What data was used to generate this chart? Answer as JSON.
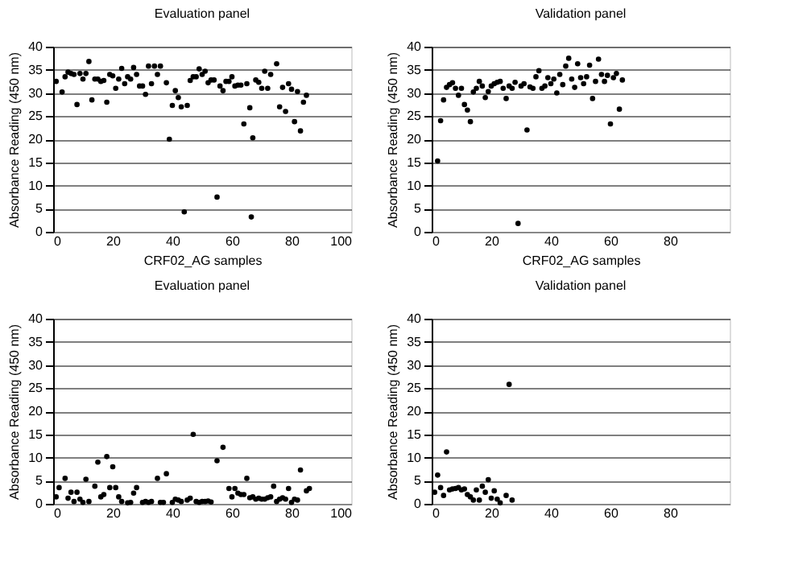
{
  "chart_data": [
    {
      "type": "scatter",
      "title": "Evaluation panel",
      "xlabel": "CRF02_AG samples",
      "ylabel": "Absorbance Reading (450 nm)",
      "color": "#000000",
      "marker": "circle",
      "grid": "y",
      "xlim": [
        0,
        100
      ],
      "xticks": [
        0,
        20,
        40,
        60,
        80,
        100
      ],
      "ylim": [
        0,
        40
      ],
      "yticks": [
        0,
        5,
        10,
        15,
        20,
        25,
        30,
        35,
        40
      ],
      "x": [
        1,
        3,
        4,
        5,
        6,
        7,
        8,
        9,
        10,
        11,
        12,
        13,
        14,
        15,
        16,
        17,
        18,
        19,
        20,
        21,
        22,
        23,
        24,
        25,
        26,
        27,
        28,
        29,
        30,
        31,
        32,
        33,
        34,
        35,
        36,
        38,
        39,
        40,
        41,
        42,
        43,
        44,
        45,
        46,
        47,
        48,
        49,
        50,
        51,
        52,
        53,
        54,
        55,
        56,
        57,
        58,
        59,
        60,
        61,
        62,
        63,
        64,
        65,
        66,
        66.5,
        67,
        68,
        69,
        70,
        71,
        72,
        73,
        75,
        76,
        77,
        78,
        79,
        80,
        81,
        82,
        83,
        84,
        85
      ],
      "values": [
        32.5,
        30.2,
        33.5,
        34.5,
        34.2,
        34,
        27.5,
        34.2,
        33,
        34.2,
        36.8,
        28.5,
        33,
        33,
        32.5,
        32.7,
        28,
        34,
        33.7,
        31,
        33,
        35.3,
        32,
        33.5,
        33,
        35.5,
        34,
        31.5,
        31.5,
        29.7,
        35.8,
        32,
        35.8,
        34,
        35.8,
        32.2,
        20,
        27.3,
        30.5,
        29,
        27,
        4.3,
        27.3,
        32.7,
        33.5,
        33.5,
        35.2,
        34,
        34.7,
        32.2,
        32.8,
        32.8,
        7.5,
        31.5,
        30.5,
        32.5,
        32.5,
        33.5,
        31.5,
        31.7,
        31.7,
        23.3,
        32,
        26.8,
        3.2,
        20.3,
        32.8,
        32.3,
        31,
        34.7,
        31,
        34,
        36.3,
        27,
        31.2,
        26,
        32,
        30.8,
        23.8,
        30.3,
        21.8,
        28,
        29.5
      ]
    },
    {
      "type": "scatter",
      "title": "Validation panel",
      "xlabel": "CRF02_AG samples",
      "ylabel": "Absorbance Reading (450 nm)",
      "color": "#000000",
      "marker": "circle",
      "grid": "y",
      "xlim": [
        0,
        100
      ],
      "xticks": [
        0,
        20,
        40,
        60,
        80
      ],
      "ylim": [
        0,
        40
      ],
      "yticks": [
        0,
        5,
        10,
        15,
        20,
        25,
        30,
        35,
        40
      ],
      "x": [
        2,
        3,
        4,
        5,
        6,
        7,
        8,
        9,
        10,
        11,
        12,
        13,
        14,
        15,
        16,
        17,
        18,
        19,
        20,
        21,
        22,
        23,
        24,
        25,
        26,
        27,
        28,
        29,
        30,
        31,
        32,
        33,
        34,
        35,
        36,
        37,
        38,
        39,
        40,
        41,
        42,
        43,
        44,
        45,
        46,
        47,
        48,
        49,
        50,
        51,
        52,
        53,
        54,
        55,
        56,
        57,
        58,
        59,
        60,
        61,
        62,
        63,
        64
      ],
      "values": [
        15.3,
        24,
        28.5,
        31.2,
        31.8,
        32.2,
        31,
        29.5,
        31,
        27.5,
        26.3,
        23.8,
        30.2,
        31,
        32.5,
        31.5,
        29,
        30.3,
        31.5,
        32,
        32.3,
        32.5,
        31,
        28.8,
        31.5,
        31,
        32.3,
        1.8,
        31.5,
        32,
        22,
        31.3,
        31,
        33.5,
        34.8,
        31,
        31.5,
        33.3,
        32,
        33,
        30,
        34,
        31.8,
        35.8,
        37.5,
        33,
        31.2,
        36.3,
        33.3,
        32,
        33.5,
        36,
        28.8,
        32.5,
        37.3,
        34,
        32.5,
        33.8,
        23.3,
        33.3,
        34.2,
        26.5,
        32.8
      ]
    },
    {
      "type": "scatter",
      "title": "Evaluation panel",
      "ylabel": "Absorbance Reading (450 nm)",
      "color": "#000000",
      "marker": "circle",
      "grid": "y",
      "xlim": [
        0,
        100
      ],
      "xticks": [
        0,
        20,
        40,
        60,
        80,
        100
      ],
      "ylim": [
        0,
        40
      ],
      "yticks": [
        0,
        5,
        10,
        15,
        20,
        25,
        30,
        35,
        40
      ],
      "x": [
        1,
        2,
        4,
        5,
        6,
        7,
        8,
        9,
        10,
        11,
        12,
        14,
        15,
        16,
        17,
        18,
        19,
        20,
        21,
        22,
        23,
        25,
        26,
        27,
        28,
        30,
        31,
        32,
        33,
        35,
        36,
        37,
        38,
        40,
        41,
        42,
        43,
        45,
        46,
        47,
        48,
        49,
        50,
        51,
        52,
        53,
        55,
        57,
        59,
        60,
        61,
        62,
        63,
        64,
        65,
        66,
        67,
        68,
        69,
        70,
        71,
        72,
        73,
        74,
        75,
        76,
        77,
        78,
        79,
        80,
        81,
        82,
        83,
        85,
        86
      ],
      "values": [
        1.5,
        3.5,
        5.5,
        1.2,
        2.5,
        0.5,
        2.5,
        1,
        0.3,
        5.3,
        0.5,
        3.8,
        9,
        1.5,
        2,
        10.2,
        3.5,
        8,
        3.5,
        1.5,
        0.5,
        0.2,
        0.3,
        2.3,
        3.5,
        0.3,
        0.5,
        0.3,
        0.5,
        5.5,
        0.3,
        0.3,
        6.5,
        0.3,
        1,
        0.8,
        0.5,
        0.8,
        1.2,
        15,
        0.5,
        0.3,
        0.5,
        0.5,
        0.6,
        0.4,
        9.3,
        12.2,
        3.3,
        1.5,
        3.3,
        2.3,
        2,
        2,
        5.5,
        1.3,
        1.5,
        1,
        1.2,
        1,
        1,
        1.3,
        1.5,
        3.8,
        0.5,
        1,
        1.3,
        1,
        3.3,
        0.3,
        1,
        0.8,
        7.3,
        2.8,
        3.3
      ]
    },
    {
      "type": "scatter",
      "title": "Validation panel",
      "ylabel": "Absorbance Reading (450 nm)",
      "color": "#000000",
      "marker": "circle",
      "grid": "y",
      "xlim": [
        0,
        100
      ],
      "xticks": [
        0,
        20,
        40,
        60,
        80
      ],
      "ylim": [
        0,
        40
      ],
      "yticks": [
        0,
        5,
        10,
        15,
        20,
        25,
        30,
        35,
        40
      ],
      "x": [
        1,
        2,
        3,
        4,
        5,
        6,
        7,
        8,
        9,
        10,
        11,
        12,
        13,
        14,
        15,
        16,
        17,
        18,
        19,
        20,
        21,
        22,
        23,
        25,
        26,
        27
      ],
      "values": [
        2.5,
        6.2,
        3.5,
        1.8,
        11.2,
        3,
        3.2,
        3.3,
        3.5,
        3,
        3.2,
        2,
        1.5,
        0.8,
        3,
        0.8,
        3.8,
        2.5,
        5.2,
        1.2,
        2.8,
        1,
        0.2,
        1.8,
        25.8,
        0.8
      ]
    }
  ]
}
